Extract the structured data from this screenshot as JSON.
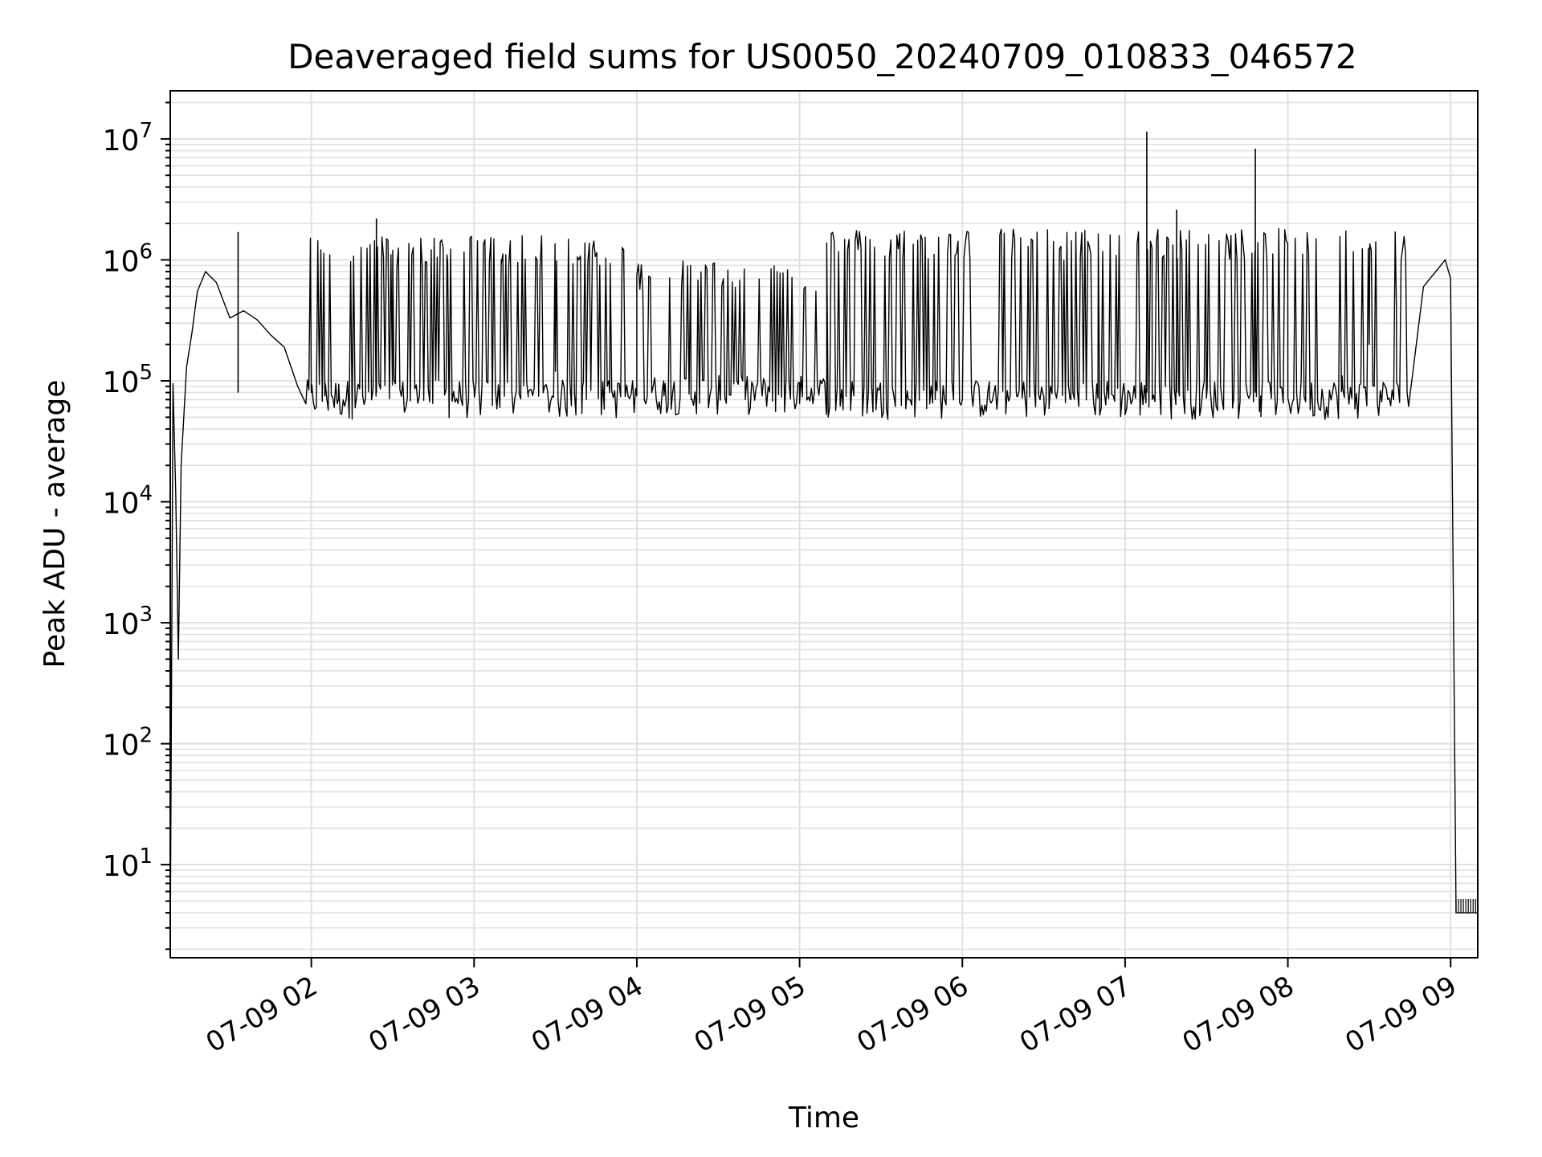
{
  "chart_data": {
    "type": "line",
    "title": "Deaveraged field sums for US0050_20240709_010833_046572",
    "xlabel": "Time",
    "ylabel": "Peak ADU - average",
    "yscale": "log",
    "grid": true,
    "line_color": "#000000",
    "grid_color": "#e0e0e0",
    "x_date": "2024-07-09",
    "xlim": [
      "01:08",
      "09:10"
    ],
    "ylim": [
      1.7,
      25000000
    ],
    "x_ticks": [
      "02:00",
      "03:00",
      "04:00",
      "05:00",
      "06:00",
      "07:00",
      "08:00",
      "09:00"
    ],
    "x_tick_labels": [
      "07-09 02",
      "07-09 03",
      "07-09 04",
      "07-09 05",
      "07-09 06",
      "07-09 07",
      "07-09 08",
      "07-09 09"
    ],
    "y_ticks": [
      10,
      100,
      1000,
      10000,
      100000,
      1000000,
      10000000
    ],
    "y_tick_labels": [
      {
        "base": "10",
        "exp": "1"
      },
      {
        "base": "10",
        "exp": "2"
      },
      {
        "base": "10",
        "exp": "3"
      },
      {
        "base": "10",
        "exp": "4"
      },
      {
        "base": "10",
        "exp": "5"
      },
      {
        "base": "10",
        "exp": "6"
      },
      {
        "base": "10",
        "exp": "7"
      }
    ],
    "series": [
      {
        "x": [
          "01:08",
          "01:09",
          "01:10",
          "01:11",
          "01:12",
          "01:14",
          "01:16",
          "01:18",
          "01:21",
          "01:25",
          "01:30",
          "01:35",
          "01:40",
          "01:45",
          "01:50",
          "01:55",
          "02:00",
          "02:05",
          "02:10",
          "02:20",
          "02:30",
          "02:40",
          "02:50",
          "03:00",
          "03:10",
          "03:20",
          "03:30",
          "03:40",
          "03:50",
          "04:00",
          "04:10",
          "04:20",
          "04:30",
          "04:40",
          "04:50",
          "05:00",
          "05:10",
          "05:20",
          "05:30",
          "05:40",
          "05:50",
          "06:00",
          "06:10",
          "06:20",
          "06:30",
          "06:40",
          "06:50",
          "07:00",
          "07:10",
          "07:20",
          "07:30",
          "07:40",
          "07:50",
          "08:00",
          "08:10",
          "08:20",
          "08:30",
          "08:40",
          "08:50",
          "08:58",
          "09:00",
          "09:02",
          "09:10"
        ],
        "y": [
          2,
          95000,
          12000,
          500,
          20000,
          130000,
          250000,
          550000,
          800000,
          650000,
          330000,
          380000,
          320000,
          240000,
          190000,
          90000,
          80000,
          75000,
          70000,
          72000,
          1200000,
          90000,
          1100000,
          85000,
          1000000,
          80000,
          120000,
          90000,
          80000,
          75000,
          75000,
          70000,
          72000,
          70000,
          68000,
          65000,
          60000,
          75000,
          70000,
          72000,
          70000,
          70000,
          72000,
          75000,
          75000,
          70000,
          72000,
          75000,
          70000,
          75000,
          72000,
          70000,
          75000,
          72000,
          75000,
          110000,
          200000,
          420000,
          600000,
          1000000,
          700000,
          4,
          4
        ]
      }
    ],
    "spikes": [
      {
        "x": "01:33",
        "y": 1700000
      },
      {
        "x": "02:24",
        "y": 2200000
      },
      {
        "x": "07:08",
        "y": 11500000
      },
      {
        "x": "07:19",
        "y": 2600000
      },
      {
        "x": "07:48",
        "y": 8300000
      }
    ],
    "burst_regions": [
      {
        "from": "01:58",
        "to": "04:00",
        "top": 1450000,
        "bottom": 60000
      },
      {
        "from": "04:00",
        "to": "05:10",
        "top": 900000,
        "bottom": 65000
      },
      {
        "from": "05:10",
        "to": "08:45",
        "top": 1650000,
        "bottom": 60000
      }
    ]
  }
}
